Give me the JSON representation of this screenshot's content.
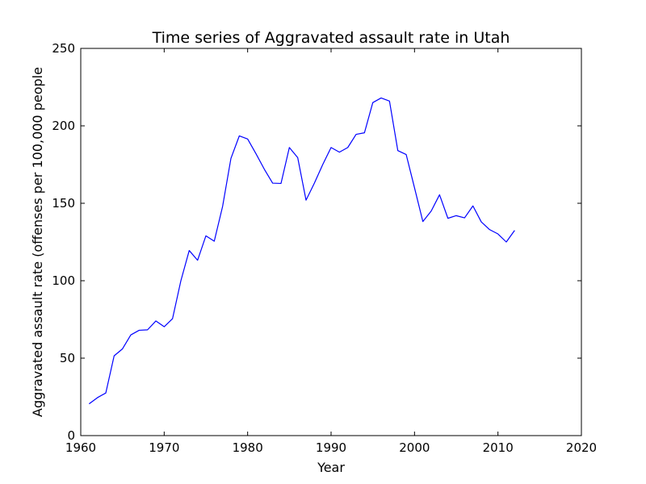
{
  "chart_data": {
    "type": "line",
    "title": "Time series of Aggravated assault rate in Utah",
    "xlabel": "Year",
    "ylabel": "Aggravated assault rate (offenses per 100,000 people",
    "xlim": [
      1960,
      2020
    ],
    "ylim": [
      0,
      250
    ],
    "x_ticks": [
      "1960",
      "1970",
      "1980",
      "1990",
      "2000",
      "2010",
      "2020"
    ],
    "y_ticks": [
      "0",
      "50",
      "100",
      "150",
      "200",
      "250"
    ],
    "grid": false,
    "legend": "none",
    "series": [
      {
        "color": "#0000ff",
        "x": [
          1961,
          1962,
          1963,
          1964,
          1965,
          1966,
          1967,
          1968,
          1969,
          1970,
          1971,
          1972,
          1973,
          1974,
          1975,
          1976,
          1977,
          1978,
          1979,
          1980,
          1981,
          1982,
          1983,
          1984,
          1985,
          1986,
          1987,
          1988,
          1989,
          1990,
          1991,
          1992,
          1993,
          1994,
          1995,
          1996,
          1997,
          1998,
          1999,
          2000,
          2001,
          2002,
          2003,
          2004,
          2005,
          2006,
          2007,
          2008,
          2009,
          2010,
          2011,
          2012
        ],
        "values": [
          20.5,
          24.5,
          27.5,
          51.5,
          56,
          65,
          68,
          68.3,
          74,
          70.3,
          75.5,
          100,
          119.5,
          113.2,
          129,
          125.5,
          148,
          179,
          193.5,
          191.5,
          182,
          172,
          163,
          162.8,
          186,
          179.5,
          152,
          163,
          175,
          186,
          183,
          186,
          194.5,
          195.5,
          215,
          218,
          216,
          184,
          181.5,
          160,
          138.2,
          145,
          155.5,
          140.3,
          142,
          140.6,
          148.3,
          138,
          133,
          130.2,
          125,
          132.5
        ]
      }
    ]
  }
}
